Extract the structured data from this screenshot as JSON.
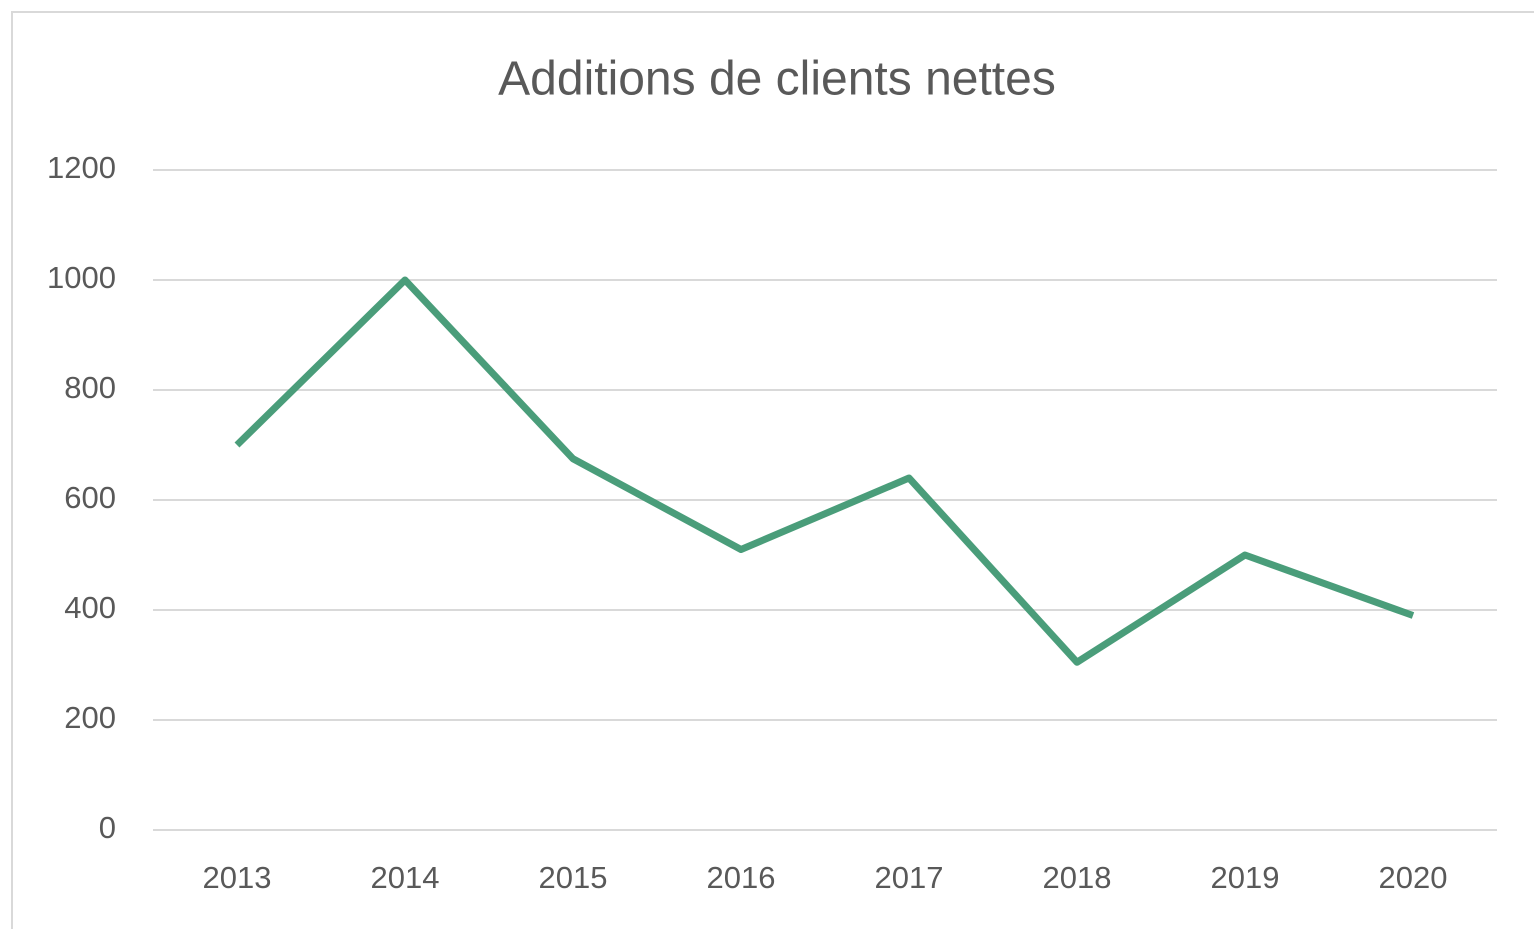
{
  "chart_data": {
    "type": "line",
    "title": "Additions de clients nettes",
    "categories": [
      "2013",
      "2014",
      "2015",
      "2016",
      "2017",
      "2018",
      "2019",
      "2020"
    ],
    "series": [
      {
        "name": "Additions de clients nettes",
        "color": "#4a9d7a",
        "values": [
          700,
          1000,
          675,
          510,
          640,
          305,
          500,
          390
        ]
      }
    ],
    "ylim": [
      0,
      1200
    ],
    "yticks": [
      0,
      200,
      400,
      600,
      800,
      1000,
      1200
    ],
    "grid": true,
    "legend": false
  }
}
